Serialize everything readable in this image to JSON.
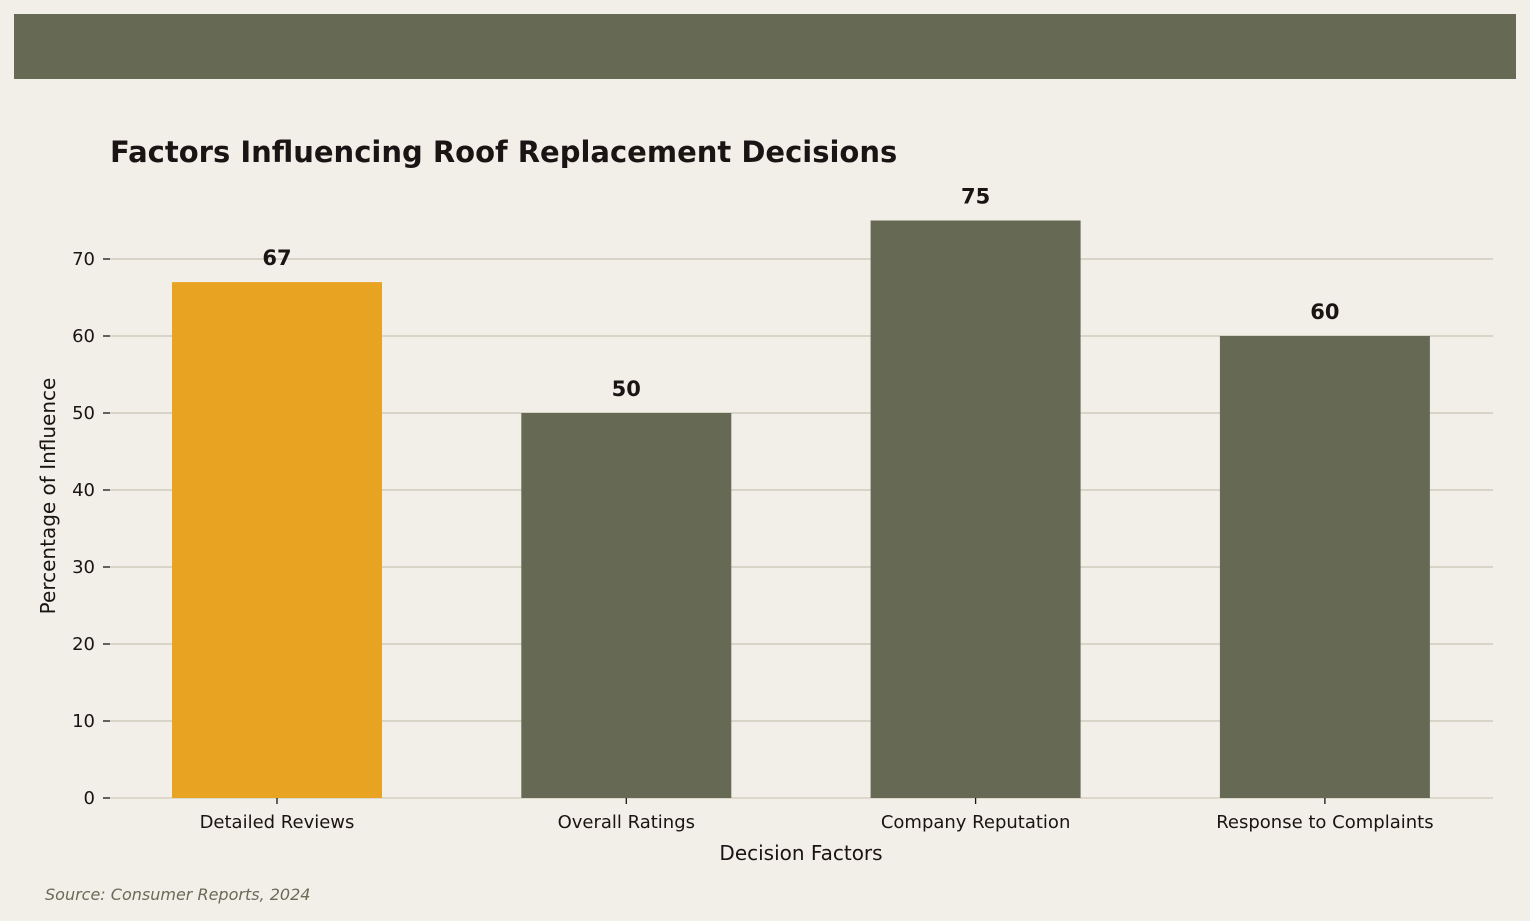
{
  "colors": {
    "background": "#f2efe8",
    "band": "#666a54",
    "highlight": "#e8a323",
    "bar": "#666a54",
    "grid": "#cfcbbc",
    "text": "#1a1414",
    "source": "#6a6a58"
  },
  "source_note": "Source: Consumer Reports, 2024",
  "chart_data": {
    "type": "bar",
    "title": "Factors Influencing Roof Replacement Decisions",
    "xlabel": "Decision Factors",
    "ylabel": "Percentage of Influence",
    "categories": [
      "Detailed Reviews",
      "Overall Ratings",
      "Company Reputation",
      "Response to Complaints"
    ],
    "values": [
      67,
      50,
      75,
      60
    ],
    "highlighted_category": "Detailed Reviews",
    "ylim": [
      0,
      77
    ],
    "yticks": [
      0,
      10,
      20,
      30,
      40,
      50,
      60,
      70
    ],
    "grid": "horizontal",
    "data_labels": true
  }
}
